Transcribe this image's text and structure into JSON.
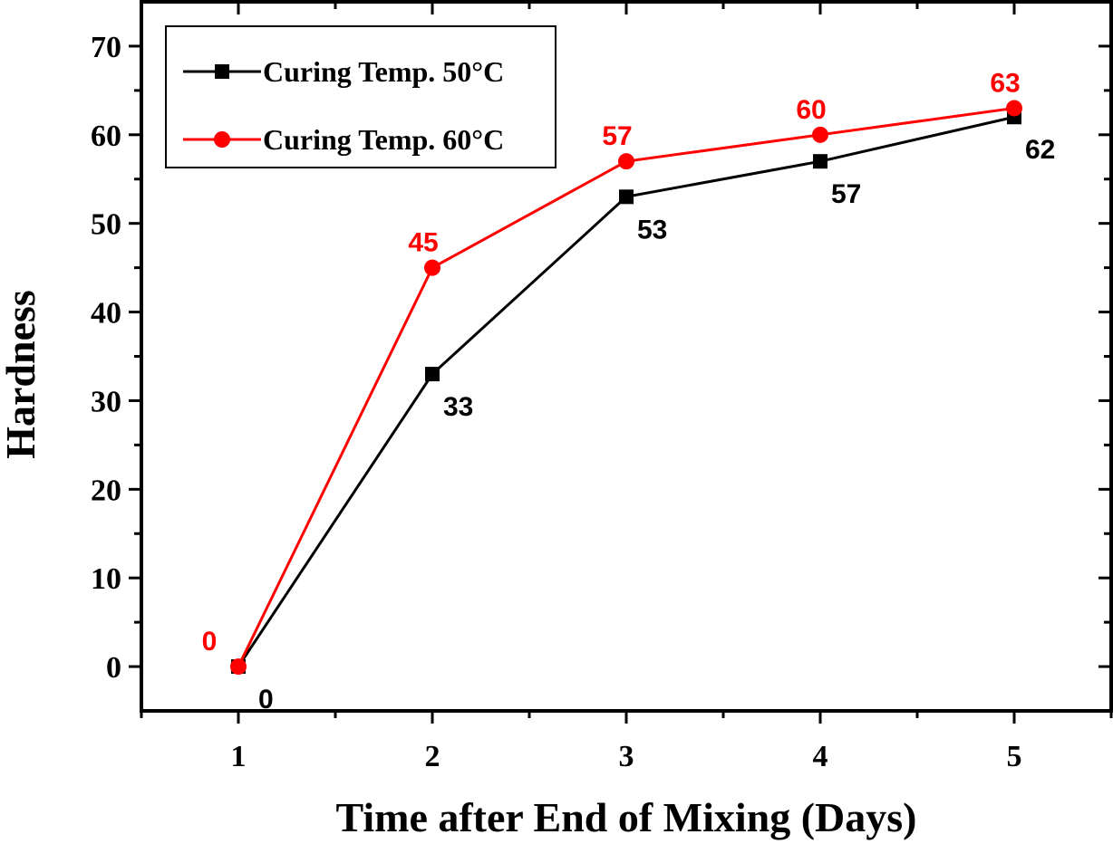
{
  "chart_data": {
    "type": "line",
    "title": "",
    "xlabel": "Time after End of Mixing (Days)",
    "ylabel": "Hardness",
    "x": [
      1,
      2,
      3,
      4,
      5
    ],
    "xlim": [
      0.5,
      5.5
    ],
    "ylim": [
      -5,
      75
    ],
    "xticks": [
      1,
      2,
      3,
      4,
      5
    ],
    "xtick_labels": [
      "1",
      "2",
      "3",
      "4",
      "5"
    ],
    "yticks": [
      0,
      10,
      20,
      30,
      40,
      50,
      60,
      70
    ],
    "ytick_labels": [
      "0",
      "10",
      "20",
      "30",
      "40",
      "50",
      "60",
      "70"
    ],
    "grid": false,
    "legend": {
      "position": "top-left",
      "boxed": true
    },
    "series": [
      {
        "name": "Curing Temp. 50°C",
        "color": "#000000",
        "marker": "square",
        "values": [
          0,
          33,
          53,
          57,
          62
        ],
        "data_labels": [
          "0",
          "33",
          "53",
          "57",
          "62"
        ],
        "label_position": "below-right"
      },
      {
        "name": "Curing Temp. 60°C",
        "color": "#ff0000",
        "marker": "circle",
        "values": [
          0,
          45,
          57,
          60,
          63
        ],
        "data_labels": [
          "0",
          "45",
          "57",
          "60",
          "63"
        ],
        "label_position": "above-left"
      }
    ]
  }
}
